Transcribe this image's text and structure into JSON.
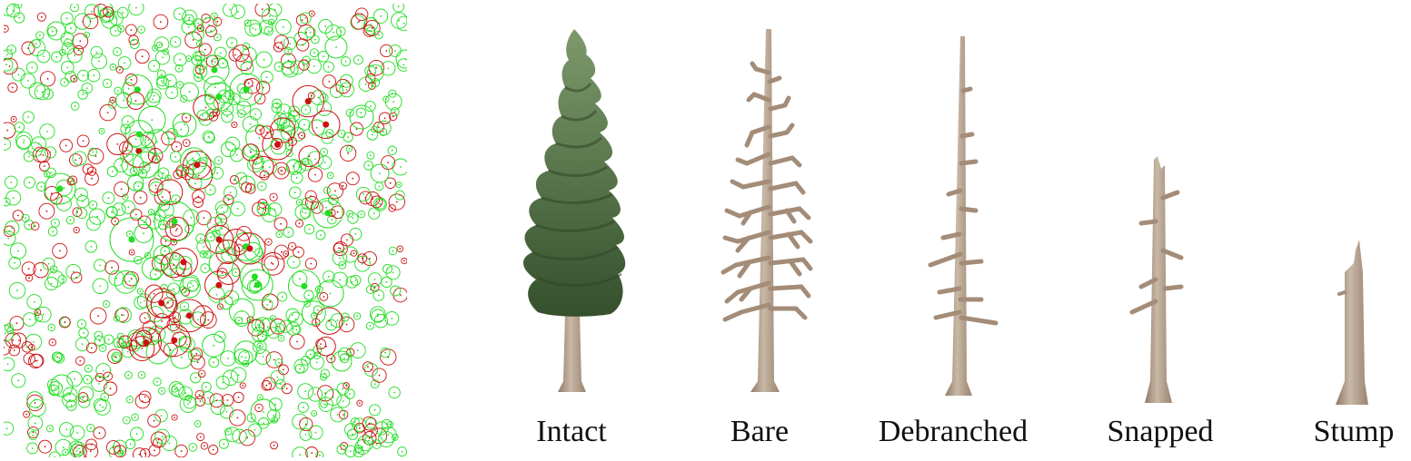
{
  "stand_map": {
    "colors": {
      "live": "#22dd22",
      "dead": "#cc1111"
    }
  },
  "stages": [
    {
      "label": "Intact",
      "icon": "intact-tree-icon"
    },
    {
      "label": "Bare",
      "icon": "bare-tree-icon"
    },
    {
      "label": "Debranched",
      "icon": "debranched-snag-icon"
    },
    {
      "label": "Snapped",
      "icon": "snapped-snag-icon"
    },
    {
      "label": "Stump",
      "icon": "stump-icon"
    }
  ],
  "colors": {
    "foliage_dark": "#3e5a34",
    "foliage_light": "#7d9a6c",
    "trunk": "#a38c78",
    "trunk_light": "#c9b8a6",
    "label": "#111111"
  }
}
